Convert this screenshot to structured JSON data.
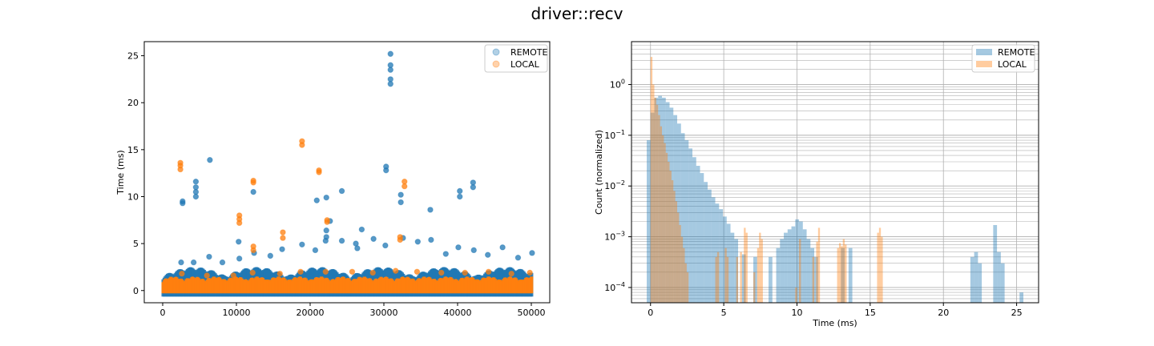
{
  "figure_title": "driver::recv",
  "colors": {
    "remote": "#1f77b4",
    "local": "#ff7f0e"
  },
  "chart_data": [
    {
      "type": "scatter",
      "title": "",
      "xlabel": "",
      "ylabel": "Time (ms)",
      "xlim": [
        -2500,
        52500
      ],
      "ylim": [
        -1.3,
        26.5
      ],
      "xticks": [
        0,
        10000,
        20000,
        30000,
        40000,
        50000
      ],
      "xtick_labels": [
        "0",
        "10000",
        "20000",
        "30000",
        "40000",
        "50000"
      ],
      "yticks": [
        0,
        5,
        10,
        15,
        20,
        25
      ],
      "ytick_labels": [
        "0",
        "5",
        "10",
        "15",
        "20",
        "25"
      ],
      "grid": false,
      "legend": "upper right",
      "series": [
        {
          "name": "REMOTE",
          "color": "#1f77b4",
          "alpha": 0.35,
          "points": [
            [
              2700,
              9.3
            ],
            [
              2700,
              9.5
            ],
            [
              4500,
              10.0
            ],
            [
              4500,
              10.5
            ],
            [
              4500,
              11.0
            ],
            [
              4500,
              11.6
            ],
            [
              6400,
              13.9
            ],
            [
              10300,
              5.2
            ],
            [
              12300,
              10.5
            ],
            [
              20900,
              9.6
            ],
            [
              22200,
              9.9
            ],
            [
              22200,
              6.4
            ],
            [
              22200,
              5.7
            ],
            [
              24300,
              10.6
            ],
            [
              30300,
              12.8
            ],
            [
              30300,
              13.2
            ],
            [
              30900,
              22.0
            ],
            [
              30900,
              22.5
            ],
            [
              30900,
              23.5
            ],
            [
              30900,
              24.0
            ],
            [
              30900,
              25.2
            ],
            [
              32300,
              9.4
            ],
            [
              32300,
              10.2
            ],
            [
              36300,
              8.6
            ],
            [
              40300,
              10.0
            ],
            [
              40300,
              10.6
            ],
            [
              42100,
              11.0
            ],
            [
              42100,
              11.5
            ],
            [
              2500,
              3.0
            ],
            [
              4200,
              3.0
            ],
            [
              6300,
              3.6
            ],
            [
              8100,
              3.0
            ],
            [
              10400,
              3.4
            ],
            [
              12400,
              4.0
            ],
            [
              14600,
              3.7
            ],
            [
              16200,
              4.4
            ],
            [
              18900,
              4.9
            ],
            [
              20700,
              4.3
            ],
            [
              22100,
              5.3
            ],
            [
              24300,
              5.3
            ],
            [
              26400,
              4.5
            ],
            [
              28600,
              5.5
            ],
            [
              30200,
              4.8
            ],
            [
              32600,
              5.6
            ],
            [
              34600,
              5.2
            ],
            [
              36400,
              5.4
            ],
            [
              38400,
              3.9
            ],
            [
              40100,
              4.6
            ],
            [
              42200,
              4.3
            ],
            [
              44100,
              3.8
            ],
            [
              46100,
              4.6
            ],
            [
              48200,
              3.5
            ],
            [
              50100,
              4.0
            ],
            [
              26200,
              5.0
            ],
            [
              27000,
              6.5
            ],
            [
              22700,
              7.4
            ]
          ]
        },
        {
          "name": "LOCAL",
          "color": "#ff7f0e",
          "alpha": 0.35,
          "points": [
            [
              2400,
              12.9
            ],
            [
              2400,
              13.3
            ],
            [
              2400,
              13.6
            ],
            [
              10400,
              7.2
            ],
            [
              10400,
              7.6
            ],
            [
              10400,
              8.0
            ],
            [
              12300,
              4.3
            ],
            [
              12300,
              4.7
            ],
            [
              12300,
              11.5
            ],
            [
              12300,
              11.7
            ],
            [
              16300,
              5.6
            ],
            [
              16300,
              6.2
            ],
            [
              18900,
              15.5
            ],
            [
              18900,
              15.9
            ],
            [
              21200,
              12.6
            ],
            [
              21200,
              12.8
            ],
            [
              22300,
              7.3
            ],
            [
              22300,
              7.5
            ],
            [
              32200,
              5.4
            ],
            [
              32200,
              5.7
            ],
            [
              32800,
              11.1
            ],
            [
              32800,
              11.6
            ],
            [
              2600,
              1.8
            ],
            [
              6000,
              1.6
            ],
            [
              9600,
              1.6
            ],
            [
              12200,
              1.9
            ],
            [
              15900,
              1.8
            ],
            [
              18700,
              2.0
            ],
            [
              22100,
              2.0
            ],
            [
              25700,
              2.0
            ],
            [
              28500,
              1.9
            ],
            [
              31600,
              2.1
            ],
            [
              34500,
              2.0
            ],
            [
              37800,
              1.9
            ],
            [
              41000,
              1.9
            ],
            [
              44200,
              2.0
            ],
            [
              47300,
              1.8
            ],
            [
              49800,
              1.9
            ]
          ]
        }
      ]
    },
    {
      "type": "bar",
      "title": "",
      "xlabel": "Time (ms)",
      "ylabel": "Count (normalized)",
      "yscale": "log",
      "xlim": [
        -1.3,
        26.5
      ],
      "ylim": [
        5e-05,
        7
      ],
      "xticks": [
        0,
        5,
        10,
        15,
        20,
        25
      ],
      "xtick_labels": [
        "0",
        "5",
        "10",
        "15",
        "20",
        "25"
      ],
      "yticks_major": [
        0.0001,
        0.001,
        0.01,
        0.1,
        1
      ],
      "ytick_labels": [
        "10−4",
        "10−3",
        "10−2",
        "10−1",
        "100"
      ],
      "grid": true,
      "legend": "upper right",
      "series": [
        {
          "name": "REMOTE",
          "color": "#1f77b4",
          "alpha": 0.4,
          "bin_width": 0.26,
          "bins": [
            [
              -0.26,
              0.08
            ],
            [
              0.0,
              0.28
            ],
            [
              0.26,
              0.55
            ],
            [
              0.52,
              0.6
            ],
            [
              0.78,
              0.55
            ],
            [
              1.04,
              0.45
            ],
            [
              1.3,
              0.35
            ],
            [
              1.56,
              0.25
            ],
            [
              1.82,
              0.17
            ],
            [
              2.08,
              0.11
            ],
            [
              2.34,
              0.08
            ],
            [
              2.6,
              0.055
            ],
            [
              2.86,
              0.037
            ],
            [
              3.12,
              0.025
            ],
            [
              3.38,
              0.018
            ],
            [
              3.64,
              0.012
            ],
            [
              3.9,
              0.0085
            ],
            [
              4.16,
              0.006
            ],
            [
              4.42,
              0.0045
            ],
            [
              4.68,
              0.0035
            ],
            [
              4.94,
              0.0025
            ],
            [
              5.2,
              0.0018
            ],
            [
              5.46,
              0.0012
            ],
            [
              5.72,
              0.0009
            ],
            [
              6.24,
              0.00045
            ],
            [
              7.02,
              0.0004
            ],
            [
              8.06,
              0.0004
            ],
            [
              8.58,
              0.0006
            ],
            [
              8.84,
              0.0009
            ],
            [
              9.1,
              0.0012
            ],
            [
              9.36,
              0.0014
            ],
            [
              9.62,
              0.0016
            ],
            [
              9.88,
              0.0022
            ],
            [
              10.14,
              0.002
            ],
            [
              10.4,
              0.0014
            ],
            [
              10.66,
              0.0009
            ],
            [
              10.92,
              0.0006
            ],
            [
              11.18,
              0.0004
            ],
            [
              13.0,
              0.0006
            ],
            [
              13.52,
              0.0006
            ],
            [
              21.84,
              0.0004
            ],
            [
              22.1,
              0.0005
            ],
            [
              22.36,
              0.0003
            ],
            [
              23.4,
              0.0017
            ],
            [
              23.66,
              0.0005
            ],
            [
              23.92,
              0.0003
            ],
            [
              25.2,
              8e-05
            ]
          ]
        },
        {
          "name": "LOCAL",
          "color": "#ff7f0e",
          "alpha": 0.4,
          "bin_width": 0.13,
          "bins": [
            [
              0.0,
              3.5
            ],
            [
              0.13,
              1.0
            ],
            [
              0.26,
              0.55
            ],
            [
              0.39,
              0.4
            ],
            [
              0.52,
              0.25
            ],
            [
              0.65,
              0.15
            ],
            [
              0.78,
              0.1
            ],
            [
              0.91,
              0.07
            ],
            [
              1.04,
              0.045
            ],
            [
              1.17,
              0.03
            ],
            [
              1.3,
              0.02
            ],
            [
              1.43,
              0.013
            ],
            [
              1.56,
              0.008
            ],
            [
              1.69,
              0.005
            ],
            [
              1.82,
              0.003
            ],
            [
              1.95,
              0.0017
            ],
            [
              2.08,
              0.001
            ],
            [
              2.21,
              0.0006
            ],
            [
              2.34,
              0.0003
            ],
            [
              2.47,
              0.0002
            ],
            [
              4.42,
              0.0004
            ],
            [
              4.55,
              0.0005
            ],
            [
              5.07,
              0.0006
            ],
            [
              5.2,
              0.0004
            ],
            [
              5.85,
              0.0004
            ],
            [
              6.11,
              0.0005
            ],
            [
              6.37,
              0.0015
            ],
            [
              6.5,
              0.0012
            ],
            [
              7.02,
              0.0002
            ],
            [
              7.28,
              0.0006
            ],
            [
              7.41,
              0.0012
            ],
            [
              7.54,
              0.0009
            ],
            [
              9.88,
              0.0001
            ],
            [
              10.14,
              0.0009
            ],
            [
              11.05,
              0.0004
            ],
            [
              11.31,
              0.0008
            ],
            [
              11.44,
              0.0015
            ],
            [
              12.74,
              0.0006
            ],
            [
              12.87,
              0.00075
            ],
            [
              13.0,
              0.00065
            ],
            [
              13.13,
              0.0009
            ],
            [
              13.26,
              0.0007
            ],
            [
              15.47,
              0.0012
            ],
            [
              15.6,
              0.0015
            ],
            [
              15.73,
              0.001
            ]
          ]
        }
      ]
    }
  ]
}
